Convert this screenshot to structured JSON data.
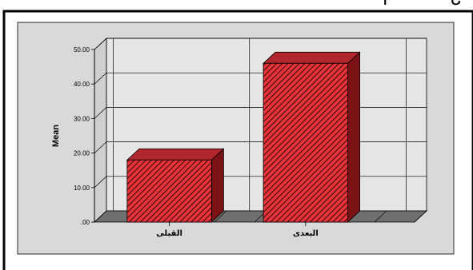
{
  "chart_data": {
    "type": "bar",
    "categories": [
      "القبلى",
      "البعدى"
    ],
    "values": [
      18,
      46
    ],
    "xlabel": "",
    "ylabel": "Mean",
    "ylim": [
      0,
      50
    ],
    "yticks": [
      0,
      10,
      20,
      30,
      40,
      50
    ],
    "ytick_labels": [
      ".00",
      "10.00",
      "20.00",
      "30.00",
      "40.00",
      "50.00"
    ],
    "grid": true,
    "three_d": true,
    "colors": {
      "bar_front": "#e8333b",
      "bar_top": "#b0262c",
      "bar_side": "#7a1216",
      "hatch": "#3a0a0c",
      "wall": "#e6e6e6",
      "floor": "#6f6f6f",
      "frame": "#000000"
    }
  }
}
